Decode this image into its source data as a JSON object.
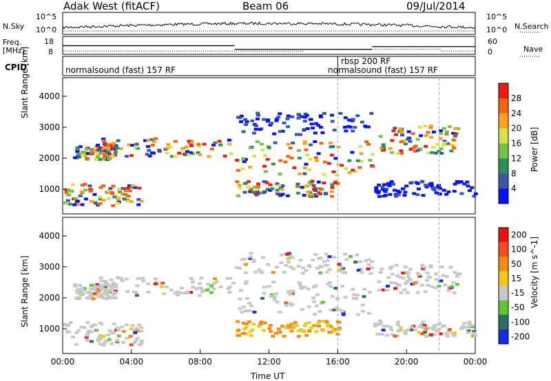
{
  "header": {
    "station": "Adak West (fitACF)",
    "beam": "Beam 06",
    "date": "09/Jul/2014"
  },
  "strip_labels": {
    "nsky": "N.Sky",
    "nsearch": "N.Search",
    "freq_line1": "Freq.",
    "freq_line2": "[MHz]",
    "nave": "Nave",
    "cpid": "CPID",
    "nsky_ticks": [
      "10^5",
      "10^0"
    ],
    "freq_ticks": [
      "18",
      "8"
    ],
    "nave_ticks": [
      "60",
      "0"
    ]
  },
  "cpid_segments": [
    {
      "label": "normalsound (fast) 157 RF",
      "start_h": 0.0
    },
    {
      "label": "rbsp 200 RF",
      "start_h": 16.0
    },
    {
      "label": "normalsound (fast) 157 RF",
      "start_h": 16.0
    }
  ],
  "chart_data": [
    {
      "type": "heatmap",
      "title": "",
      "xlabel": "Time UT",
      "ylabel": "Slant Range [km]",
      "xlim_hours": [
        0,
        24
      ],
      "x_ticks": [
        "00:00",
        "04:00",
        "08:00",
        "12:00",
        "16:00",
        "20:00",
        "00:00"
      ],
      "ylim": [
        200,
        4600
      ],
      "y_ticks": [
        1000,
        2000,
        3000,
        4000
      ],
      "colorbar": {
        "label": "Power [dB]",
        "ticks": [
          "4",
          "8",
          "12",
          "16",
          "20",
          "24",
          "28"
        ],
        "colors": [
          "#0a12f0",
          "#3a5aa0",
          "#2e8f5a",
          "#73c24a",
          "#d6e24a",
          "#f5a21e",
          "#f06414",
          "#e81e14"
        ]
      }
    },
    {
      "type": "heatmap",
      "title": "",
      "xlabel": "Time UT",
      "ylabel": "Slant Range [km]",
      "xlim_hours": [
        0,
        24
      ],
      "x_ticks": [
        "00:00",
        "04:00",
        "08:00",
        "12:00",
        "16:00",
        "20:00",
        "00:00"
      ],
      "ylim": [
        200,
        4600
      ],
      "y_ticks": [
        1000,
        2000,
        3000,
        4000
      ],
      "colorbar": {
        "label": "Velocity [m s^-1]",
        "ticks": [
          "200",
          "100",
          "50",
          "15",
          "-15",
          "-50",
          "-100",
          "-200"
        ],
        "colors": [
          "#1a2ae0",
          "#2e6e60",
          "#5fc53a",
          "#c8c8c8",
          "#f0c81e",
          "#f58c14",
          "#f0501e",
          "#e81414"
        ]
      }
    }
  ],
  "dashed_times_h": [
    16.0,
    21.9
  ],
  "freq_steps": [
    {
      "start_h": 0.0,
      "end_h": 10.0,
      "value": 12.8
    },
    {
      "start_h": 10.0,
      "end_h": 18.0,
      "value": 10.4
    },
    {
      "start_h": 18.0,
      "end_h": 24.0,
      "value": 12.2
    }
  ],
  "nave_steps": [
    {
      "start_h": 0.0,
      "end_h": 14.0,
      "value": 8
    },
    {
      "start_h": 14.0,
      "end_h": 22.0,
      "value": 14
    },
    {
      "start_h": 22.0,
      "end_h": 24.0,
      "value": 8
    }
  ]
}
